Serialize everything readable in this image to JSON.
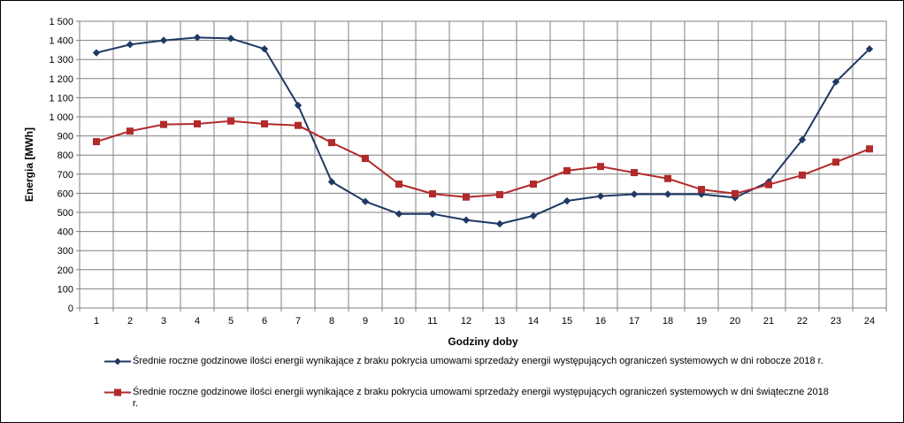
{
  "chart_data": {
    "type": "line",
    "xlabel": "Godziny doby",
    "ylabel": "Energia  [MWh]",
    "ylim": [
      0,
      1500
    ],
    "ytick_step": 100,
    "yticks": [
      "0",
      "100",
      "200",
      "300",
      "400",
      "500",
      "600",
      "700",
      "800",
      "900",
      "1 000",
      "1 100",
      "1 200",
      "1 300",
      "1 400",
      "1 500"
    ],
    "categories": [
      "1",
      "2",
      "3",
      "4",
      "5",
      "6",
      "7",
      "8",
      "9",
      "10",
      "11",
      "12",
      "13",
      "14",
      "15",
      "16",
      "17",
      "18",
      "19",
      "20",
      "21",
      "22",
      "23",
      "24"
    ],
    "grid": true,
    "legend_position": "bottom",
    "series": [
      {
        "name": "Średnie roczne godzinowe ilości energii wynikające z braku pokrycia umowami sprzedaży energii występujących ograniczeń systemowych w dni robocze 2018 r.",
        "color": "#1f3864",
        "marker": "diamond",
        "values": [
          1335,
          1378,
          1400,
          1415,
          1410,
          1355,
          1060,
          660,
          557,
          492,
          492,
          460,
          440,
          482,
          560,
          585,
          595,
          595,
          595,
          577,
          660,
          880,
          1183,
          1355
        ]
      },
      {
        "name": "Średnie roczne godzinowe ilości energii wynikające z braku pokrycia umowami sprzedaży energii występujących ograniczeń systemowych w dni świąteczne 2018 r.",
        "color": "#b22a2a",
        "marker": "square",
        "values": [
          870,
          925,
          960,
          963,
          978,
          963,
          955,
          865,
          782,
          648,
          597,
          580,
          593,
          648,
          718,
          740,
          708,
          677,
          620,
          598,
          645,
          695,
          763,
          832
        ]
      }
    ]
  }
}
